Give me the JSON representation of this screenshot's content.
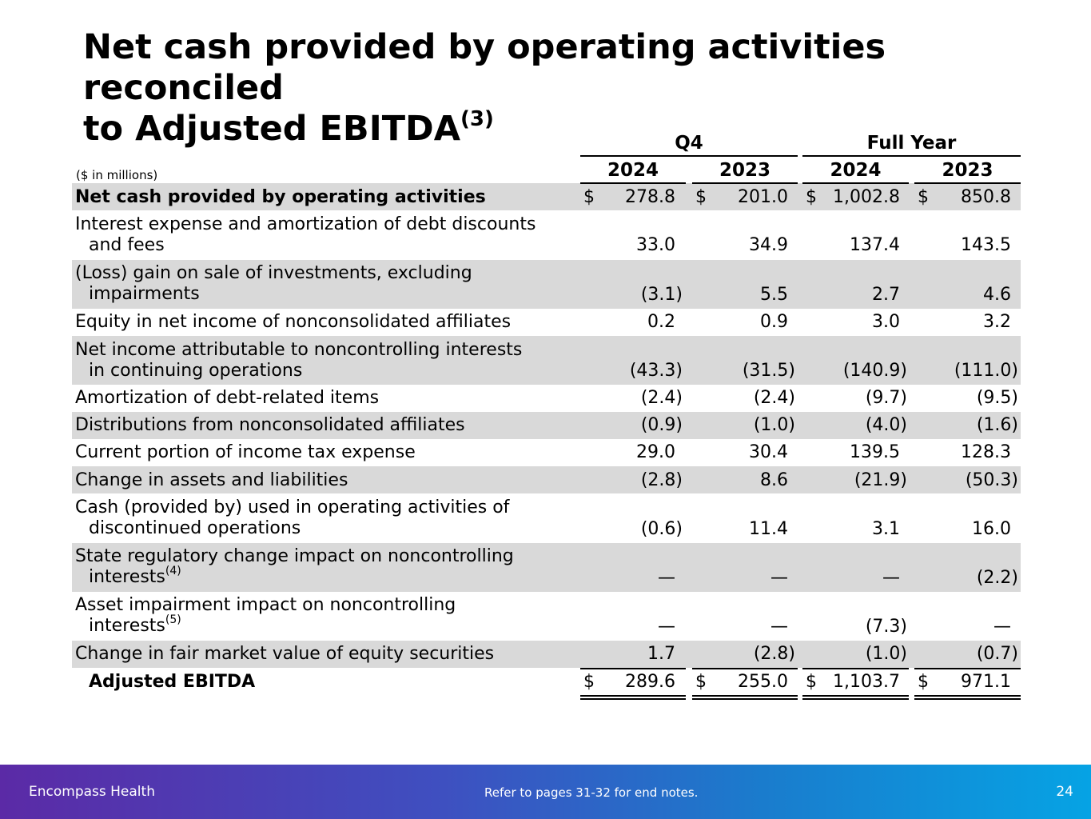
{
  "title": {
    "line1": "Net cash provided by operating activities reconciled",
    "line2": "to Adjusted EBITDA",
    "footnote": "(3)"
  },
  "table": {
    "group_q4": "Q4",
    "group_fy": "Full Year",
    "units": "($ in millions)",
    "years": [
      "2024",
      "2023",
      "2024",
      "2023"
    ],
    "rows": [
      {
        "label": "Net cash provided by operating activities",
        "values": [
          "278.8",
          "201.0",
          "1,002.8",
          "850.8"
        ]
      },
      {
        "label": "Interest expense and amortization of debt discounts",
        "label2": "and fees",
        "values": [
          "33.0",
          "34.9",
          "137.4",
          "143.5"
        ]
      },
      {
        "label": "(Loss) gain on sale of investments, excluding",
        "label2": "impairments",
        "values": [
          "(3.1)",
          "5.5",
          "2.7",
          "4.6"
        ]
      },
      {
        "label": "Equity in net income of nonconsolidated affiliates",
        "values": [
          "0.2",
          "0.9",
          "3.0",
          "3.2"
        ]
      },
      {
        "label": "Net income attributable to noncontrolling interests",
        "label2": "in continuing operations",
        "values": [
          "(43.3)",
          "(31.5)",
          "(140.9)",
          "(111.0)"
        ]
      },
      {
        "label": "Amortization of debt-related items",
        "values": [
          "(2.4)",
          "(2.4)",
          "(9.7)",
          "(9.5)"
        ]
      },
      {
        "label": "Distributions from nonconsolidated affiliates",
        "values": [
          "(0.9)",
          "(1.0)",
          "(4.0)",
          "(1.6)"
        ]
      },
      {
        "label": "Current portion of income tax expense",
        "values": [
          "29.0",
          "30.4",
          "139.5",
          "128.3"
        ]
      },
      {
        "label": "Change in assets and liabilities",
        "values": [
          "(2.8)",
          "8.6",
          "(21.9)",
          "(50.3)"
        ]
      },
      {
        "label": "Cash (provided by) used in operating activities of",
        "label2": "discontinued operations",
        "values": [
          "(0.6)",
          "11.4",
          "3.1",
          "16.0"
        ]
      },
      {
        "label": "State regulatory change impact on noncontrolling",
        "label2": "interests",
        "note": "(4)",
        "values": [
          "—",
          "—",
          "—",
          "(2.2)"
        ]
      },
      {
        "label": "Asset impairment impact on noncontrolling",
        "label2": "interests",
        "note": "(5)",
        "values": [
          "—",
          "—",
          "(7.3)",
          "—"
        ]
      },
      {
        "label": "Change in fair market value of equity securities",
        "values": [
          "1.7",
          "(2.8)",
          "(1.0)",
          "(0.7)"
        ]
      },
      {
        "label": "Adjusted EBITDA",
        "values": [
          "289.6",
          "255.0",
          "1,103.7",
          "971.1"
        ]
      }
    ],
    "dollar_sign": "$"
  },
  "footer": {
    "brand": "Encompass Health",
    "note": "Refer to pages 31-32 for end notes.",
    "page": "24"
  },
  "colors": {
    "shade": "#d9d9d9",
    "footer_start": "#5b2aa6",
    "footer_end": "#06a3e4"
  }
}
